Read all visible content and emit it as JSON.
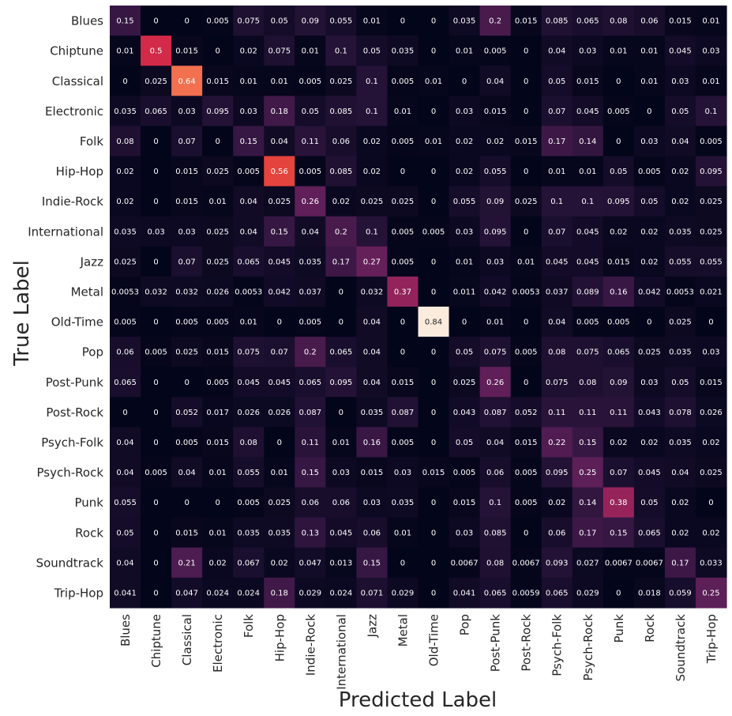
{
  "chart_data": {
    "type": "heatmap",
    "title": "",
    "xlabel": "Predicted Label",
    "ylabel": "True Label",
    "x_categories": [
      "Blues",
      "Chiptune",
      "Classical",
      "Electronic",
      "Folk",
      "Hip-Hop",
      "Indie-Rock",
      "International",
      "Jazz",
      "Metal",
      "Old-Time",
      "Pop",
      "Post-Punk",
      "Post-Rock",
      "Psych-Folk",
      "Psych-Rock",
      "Punk",
      "Rock",
      "Soundtrack",
      "Trip-Hop"
    ],
    "y_categories": [
      "Blues",
      "Chiptune",
      "Classical",
      "Electronic",
      "Folk",
      "Hip-Hop",
      "Indie-Rock",
      "International",
      "Jazz",
      "Metal",
      "Old-Time",
      "Pop",
      "Post-Punk",
      "Post-Rock",
      "Psych-Folk",
      "Psych-Rock",
      "Punk",
      "Rock",
      "Soundtrack",
      "Trip-Hop"
    ],
    "values": [
      [
        "0.15",
        "0",
        "0",
        "0.005",
        "0.075",
        "0.05",
        "0.09",
        "0.055",
        "0.01",
        "0",
        "0",
        "0.035",
        "0.2",
        "0.015",
        "0.085",
        "0.065",
        "0.08",
        "0.06",
        "0.015",
        "0.01"
      ],
      [
        "0.01",
        "0.5",
        "0.015",
        "0",
        "0.02",
        "0.075",
        "0.01",
        "0.1",
        "0.05",
        "0.035",
        "0",
        "0.01",
        "0.005",
        "0",
        "0.04",
        "0.03",
        "0.01",
        "0.01",
        "0.045",
        "0.03"
      ],
      [
        "0",
        "0.025",
        "0.64",
        "0.015",
        "0.01",
        "0.01",
        "0.005",
        "0.025",
        "0.1",
        "0.005",
        "0.01",
        "0",
        "0.04",
        "0",
        "0.05",
        "0.015",
        "0",
        "0.01",
        "0.03",
        "0.01"
      ],
      [
        "0.035",
        "0.065",
        "0.03",
        "0.095",
        "0.03",
        "0.18",
        "0.05",
        "0.085",
        "0.1",
        "0.01",
        "0",
        "0.03",
        "0.015",
        "0",
        "0.07",
        "0.045",
        "0.005",
        "0",
        "0.05",
        "0.1"
      ],
      [
        "0.08",
        "0",
        "0.07",
        "0",
        "0.15",
        "0.04",
        "0.11",
        "0.06",
        "0.02",
        "0.005",
        "0.01",
        "0.02",
        "0.02",
        "0.015",
        "0.17",
        "0.14",
        "0",
        "0.03",
        "0.04",
        "0.005"
      ],
      [
        "0.02",
        "0",
        "0.015",
        "0.025",
        "0.005",
        "0.56",
        "0.005",
        "0.085",
        "0.02",
        "0",
        "0",
        "0.02",
        "0.055",
        "0",
        "0.01",
        "0.01",
        "0.05",
        "0.005",
        "0.02",
        "0.095"
      ],
      [
        "0.02",
        "0",
        "0.015",
        "0.01",
        "0.04",
        "0.025",
        "0.26",
        "0.02",
        "0.025",
        "0.025",
        "0",
        "0.055",
        "0.09",
        "0.025",
        "0.1",
        "0.1",
        "0.095",
        "0.05",
        "0.02",
        "0.025"
      ],
      [
        "0.035",
        "0.03",
        "0.03",
        "0.025",
        "0.04",
        "0.15",
        "0.04",
        "0.2",
        "0.1",
        "0.005",
        "0.005",
        "0.03",
        "0.095",
        "0",
        "0.07",
        "0.045",
        "0.02",
        "0.02",
        "0.035",
        "0.025"
      ],
      [
        "0.025",
        "0",
        "0.07",
        "0.025",
        "0.065",
        "0.045",
        "0.035",
        "0.17",
        "0.27",
        "0.005",
        "0",
        "0.01",
        "0.03",
        "0.01",
        "0.045",
        "0.045",
        "0.015",
        "0.02",
        "0.055",
        "0.055"
      ],
      [
        "0.0053",
        "0.032",
        "0.032",
        "0.026",
        "0.0053",
        "0.042",
        "0.037",
        "0",
        "0.032",
        "0.37",
        "0",
        "0.011",
        "0.042",
        "0.0053",
        "0.037",
        "0.089",
        "0.16",
        "0.042",
        "0.0053",
        "0.021"
      ],
      [
        "0.005",
        "0",
        "0.005",
        "0.005",
        "0.01",
        "0",
        "0.005",
        "0",
        "0.04",
        "0",
        "0.84",
        "0",
        "0.01",
        "0",
        "0.04",
        "0.005",
        "0.005",
        "0",
        "0.025",
        "0"
      ],
      [
        "0.06",
        "0.005",
        "0.025",
        "0.015",
        "0.075",
        "0.07",
        "0.2",
        "0.065",
        "0.04",
        "0",
        "0",
        "0.05",
        "0.075",
        "0.005",
        "0.08",
        "0.075",
        "0.065",
        "0.025",
        "0.035",
        "0.03"
      ],
      [
        "0.065",
        "0",
        "0",
        "0.005",
        "0.045",
        "0.045",
        "0.065",
        "0.095",
        "0.04",
        "0.015",
        "0",
        "0.025",
        "0.26",
        "0",
        "0.075",
        "0.08",
        "0.09",
        "0.03",
        "0.05",
        "0.015"
      ],
      [
        "0",
        "0",
        "0.052",
        "0.017",
        "0.026",
        "0.026",
        "0.087",
        "0",
        "0.035",
        "0.087",
        "0",
        "0.043",
        "0.087",
        "0.052",
        "0.11",
        "0.11",
        "0.11",
        "0.043",
        "0.078",
        "0.026"
      ],
      [
        "0.04",
        "0",
        "0.005",
        "0.015",
        "0.08",
        "0",
        "0.11",
        "0.01",
        "0.16",
        "0.005",
        "0",
        "0.05",
        "0.04",
        "0.015",
        "0.22",
        "0.15",
        "0.02",
        "0.02",
        "0.035",
        "0.02"
      ],
      [
        "0.04",
        "0.005",
        "0.04",
        "0.01",
        "0.055",
        "0.01",
        "0.15",
        "0.03",
        "0.015",
        "0.03",
        "0.015",
        "0.005",
        "0.06",
        "0.005",
        "0.095",
        "0.25",
        "0.07",
        "0.045",
        "0.04",
        "0.025"
      ],
      [
        "0.055",
        "0",
        "0",
        "0",
        "0.005",
        "0.025",
        "0.06",
        "0.06",
        "0.03",
        "0.035",
        "0",
        "0.015",
        "0.1",
        "0.005",
        "0.02",
        "0.14",
        "0.38",
        "0.05",
        "0.02",
        "0"
      ],
      [
        "0.05",
        "0",
        "0.015",
        "0.01",
        "0.035",
        "0.035",
        "0.13",
        "0.045",
        "0.06",
        "0.01",
        "0",
        "0.03",
        "0.085",
        "0",
        "0.06",
        "0.17",
        "0.15",
        "0.065",
        "0.02",
        "0.02"
      ],
      [
        "0.04",
        "0",
        "0.21",
        "0.02",
        "0.067",
        "0.02",
        "0.047",
        "0.013",
        "0.15",
        "0",
        "0",
        "0.0067",
        "0.08",
        "0.0067",
        "0.093",
        "0.027",
        "0.0067",
        "0.0067",
        "0.17",
        "0.033"
      ],
      [
        "0.041",
        "0",
        "0.047",
        "0.024",
        "0.024",
        "0.18",
        "0.029",
        "0.024",
        "0.071",
        "0.029",
        "0",
        "0.041",
        "0.065",
        "0.0059",
        "0.065",
        "0.029",
        "0",
        "0.018",
        "0.059",
        "0.25"
      ]
    ],
    "value_range": [
      0,
      0.84
    ],
    "colormap": "rocket",
    "colorbar": false,
    "grid": false
  }
}
